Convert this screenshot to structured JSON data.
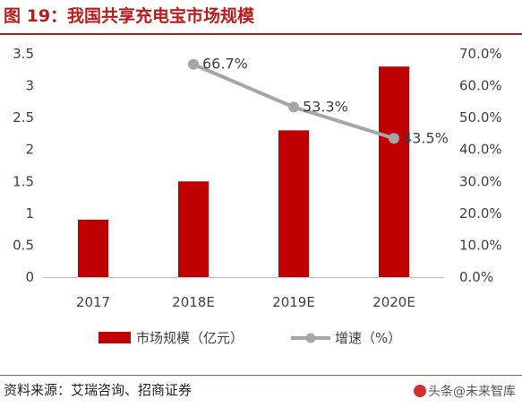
{
  "figure": {
    "title": "图 19：我国共享充电宝市场规模",
    "source": "资料来源：艾瑞咨询、招商证券",
    "watermark": "头条@未来智库"
  },
  "colors": {
    "bar": "#c00000",
    "line": "#a6a6a6",
    "title": "#b91c1c"
  },
  "chart_data": {
    "type": "bar",
    "categories": [
      "2017",
      "2018E",
      "2019E",
      "2020E"
    ],
    "series": [
      {
        "name": "市场规模（亿元）",
        "type": "bar",
        "axis": "left",
        "values": [
          0.9,
          1.5,
          2.3,
          3.3
        ]
      },
      {
        "name": "增速（%）",
        "type": "line",
        "axis": "right",
        "values": [
          null,
          66.7,
          53.3,
          43.5
        ],
        "labels": [
          "",
          "66.7%",
          "53.3%",
          "43.5%"
        ]
      }
    ],
    "y_left": {
      "min": 0,
      "max": 3.5,
      "ticks": [
        "0",
        "0.5",
        "1",
        "1.5",
        "2",
        "2.5",
        "3",
        "3.5"
      ]
    },
    "y_right": {
      "min": 0,
      "max": 70,
      "ticks": [
        "0.0%",
        "10.0%",
        "20.0%",
        "30.0%",
        "40.0%",
        "50.0%",
        "60.0%",
        "70.0%"
      ]
    },
    "grid": false,
    "legend": "bottom"
  }
}
